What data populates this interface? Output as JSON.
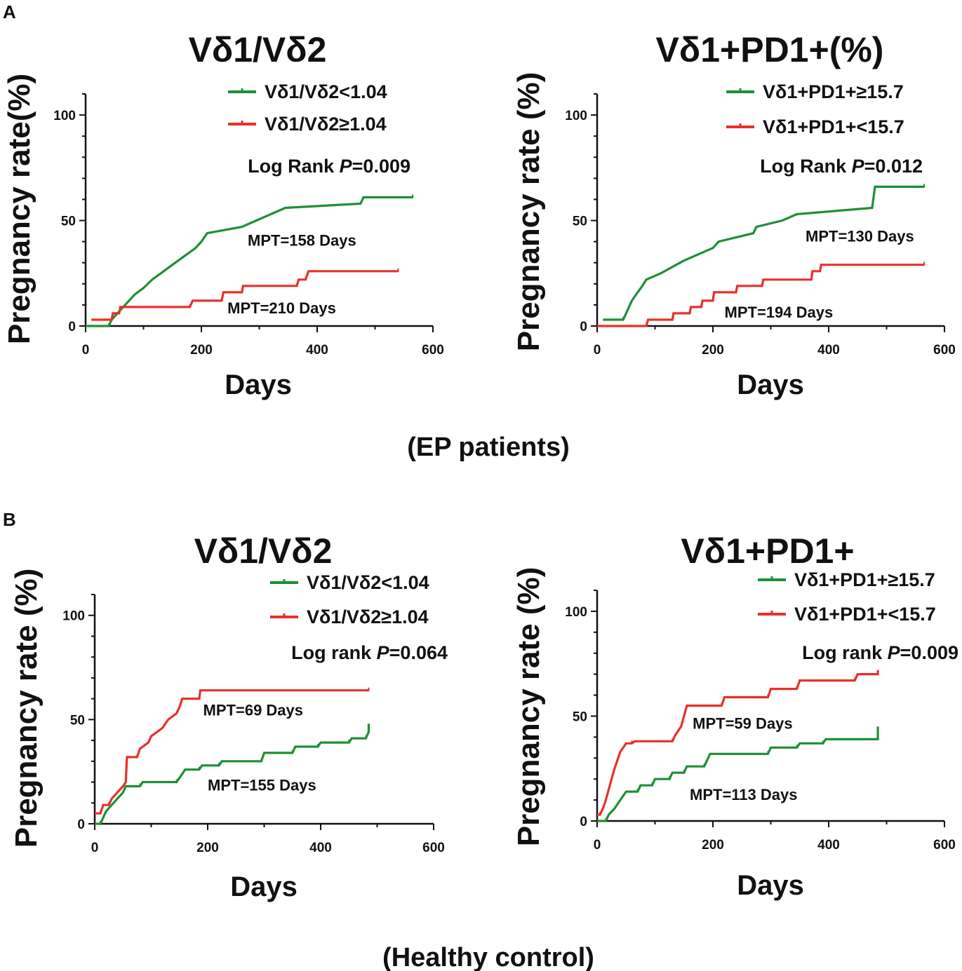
{
  "colors": {
    "series_a": "#1e8f36",
    "series_b": "#e8302a",
    "ink": "#111111"
  },
  "panels": [
    {
      "letter": "A",
      "caption": "(EP patients)"
    },
    {
      "letter": "B",
      "caption": "(Healthy control)"
    }
  ],
  "chart_data": [
    {
      "type": "line",
      "panel": "A",
      "title": "Vδ1/Vδ2",
      "xlabel": "Days",
      "ylabel": "Pregnancy rate(%)",
      "xlim": [
        0,
        600
      ],
      "ylim": [
        0,
        110
      ],
      "xticks": [
        0,
        200,
        400,
        600
      ],
      "yticks": [
        0,
        50,
        100
      ],
      "stat": {
        "prefix": "Log Rank ",
        "p": "P",
        "rest": "=0.009"
      },
      "series": [
        {
          "name": "Vδ1/Vδ2<1.04",
          "color": "#1e8f36",
          "annotation": "MPT=158 Days",
          "annotation_at": [
            280,
            38
          ],
          "points": [
            [
              0,
              0
            ],
            [
              40,
              0
            ],
            [
              45,
              3
            ],
            [
              55,
              6
            ],
            [
              65,
              9
            ],
            [
              75,
              12
            ],
            [
              85,
              15
            ],
            [
              100,
              18
            ],
            [
              115,
              22
            ],
            [
              130,
              25
            ],
            [
              145,
              28
            ],
            [
              160,
              31
            ],
            [
              175,
              34
            ],
            [
              190,
              37
            ],
            [
              200,
              40
            ],
            [
              210,
              44
            ],
            [
              270,
              47
            ],
            [
              295,
              50
            ],
            [
              320,
              53
            ],
            [
              345,
              56
            ],
            [
              475,
              58
            ],
            [
              480,
              61
            ],
            [
              565,
              61
            ]
          ]
        },
        {
          "name": "Vδ1/Vδ2≥1.04",
          "color": "#e8302a",
          "annotation": "MPT=210 Days",
          "annotation_at": [
            245,
            6
          ],
          "points": [
            [
              10,
              3
            ],
            [
              45,
              3
            ],
            [
              47,
              6
            ],
            [
              58,
              6
            ],
            [
              60,
              9
            ],
            [
              180,
              9
            ],
            [
              185,
              12
            ],
            [
              235,
              12
            ],
            [
              238,
              16
            ],
            [
              270,
              16
            ],
            [
              272,
              19
            ],
            [
              365,
              19
            ],
            [
              368,
              22
            ],
            [
              380,
              22
            ],
            [
              385,
              26
            ],
            [
              540,
              26
            ]
          ]
        }
      ]
    },
    {
      "type": "line",
      "panel": "A",
      "title": "Vδ1+PD1+(%)",
      "xlabel": "Days",
      "ylabel": "Pregnancy rate (%)",
      "xlim": [
        0,
        600
      ],
      "ylim": [
        0,
        110
      ],
      "xticks": [
        0,
        200,
        400,
        600
      ],
      "yticks": [
        0,
        50,
        100
      ],
      "stat": {
        "prefix": "Log Rank ",
        "p": "P",
        "rest": "=0.012"
      },
      "series": [
        {
          "name": "Vδ1+PD1+≥15.7",
          "color": "#1e8f36",
          "annotation": "MPT=130 Days",
          "annotation_at": [
            360,
            40
          ],
          "points": [
            [
              10,
              3
            ],
            [
              45,
              3
            ],
            [
              50,
              6
            ],
            [
              55,
              9
            ],
            [
              60,
              12
            ],
            [
              70,
              16
            ],
            [
              78,
              19
            ],
            [
              85,
              22
            ],
            [
              110,
              25
            ],
            [
              130,
              28
            ],
            [
              150,
              31
            ],
            [
              175,
              34
            ],
            [
              200,
              37
            ],
            [
              210,
              40
            ],
            [
              270,
              44
            ],
            [
              275,
              47
            ],
            [
              320,
              50
            ],
            [
              345,
              53
            ],
            [
              475,
              56
            ],
            [
              480,
              66
            ],
            [
              565,
              66
            ]
          ]
        },
        {
          "name": "Vδ1+PD1+<15.7",
          "color": "#e8302a",
          "annotation": "MPT=194 Days",
          "annotation_at": [
            220,
            4
          ],
          "points": [
            [
              0,
              0
            ],
            [
              85,
              0
            ],
            [
              88,
              3
            ],
            [
              130,
              3
            ],
            [
              132,
              6
            ],
            [
              160,
              6
            ],
            [
              162,
              9
            ],
            [
              180,
              9
            ],
            [
              182,
              12
            ],
            [
              200,
              12
            ],
            [
              202,
              16
            ],
            [
              240,
              16
            ],
            [
              242,
              19
            ],
            [
              285,
              19
            ],
            [
              287,
              22
            ],
            [
              370,
              22
            ],
            [
              372,
              26
            ],
            [
              385,
              26
            ],
            [
              387,
              29
            ],
            [
              565,
              29
            ]
          ]
        }
      ]
    },
    {
      "type": "line",
      "panel": "B",
      "title": "Vδ1/Vδ2",
      "xlabel": "Days",
      "ylabel": "Pregnancy rate (%)",
      "xlim": [
        0,
        600
      ],
      "ylim": [
        0,
        110
      ],
      "xticks": [
        0,
        200,
        400,
        600
      ],
      "yticks": [
        0,
        50,
        100
      ],
      "stat": {
        "prefix": "Log rank ",
        "p": "P",
        "rest": "=0.064"
      },
      "series": [
        {
          "name": "Vδ1/Vδ2<1.04",
          "color": "#1e8f36",
          "annotation": "MPT=155 Days",
          "annotation_at": [
            200,
            16
          ],
          "points": [
            [
              0,
              0
            ],
            [
              10,
              0
            ],
            [
              15,
              3
            ],
            [
              20,
              6
            ],
            [
              30,
              9
            ],
            [
              40,
              12
            ],
            [
              50,
              15
            ],
            [
              55,
              18
            ],
            [
              80,
              18
            ],
            [
              85,
              20
            ],
            [
              145,
              20
            ],
            [
              150,
              22
            ],
            [
              155,
              24
            ],
            [
              160,
              26
            ],
            [
              185,
              26
            ],
            [
              190,
              28
            ],
            [
              220,
              28
            ],
            [
              225,
              30
            ],
            [
              295,
              30
            ],
            [
              300,
              34
            ],
            [
              350,
              34
            ],
            [
              355,
              37
            ],
            [
              395,
              37
            ],
            [
              400,
              39
            ],
            [
              450,
              39
            ],
            [
              455,
              41
            ],
            [
              480,
              41
            ],
            [
              485,
              44
            ],
            [
              485,
              48
            ]
          ]
        },
        {
          "name": "Vδ1/Vδ2≥1.04",
          "color": "#e8302a",
          "annotation": "MPT=69 Days",
          "annotation_at": [
            192,
            52
          ],
          "points": [
            [
              0,
              5
            ],
            [
              10,
              5
            ],
            [
              15,
              9
            ],
            [
              25,
              9
            ],
            [
              30,
              12
            ],
            [
              40,
              15
            ],
            [
              50,
              18
            ],
            [
              55,
              20
            ],
            [
              57,
              32
            ],
            [
              75,
              32
            ],
            [
              80,
              36
            ],
            [
              95,
              39
            ],
            [
              100,
              42
            ],
            [
              120,
              46
            ],
            [
              130,
              50
            ],
            [
              145,
              53
            ],
            [
              150,
              56
            ],
            [
              155,
              60
            ],
            [
              185,
              60
            ],
            [
              187,
              64
            ],
            [
              485,
              64
            ]
          ]
        }
      ]
    },
    {
      "type": "line",
      "panel": "B",
      "title": "Vδ1+PD1+",
      "xlabel": "Days",
      "ylabel": "Pregnancy rate (%)",
      "xlim": [
        0,
        600
      ],
      "ylim": [
        0,
        110
      ],
      "xticks": [
        0,
        200,
        400,
        600
      ],
      "yticks": [
        0,
        50,
        100
      ],
      "stat": {
        "prefix": "Log rank ",
        "p": "P",
        "rest": "=0.009"
      },
      "series": [
        {
          "name": "Vδ1+PD1+≥15.7",
          "color": "#1e8f36",
          "annotation": "MPT=113 Days",
          "annotation_at": [
            160,
            10
          ],
          "points": [
            [
              0,
              0
            ],
            [
              15,
              0
            ],
            [
              20,
              3
            ],
            [
              30,
              6
            ],
            [
              40,
              10
            ],
            [
              50,
              14
            ],
            [
              70,
              14
            ],
            [
              75,
              17
            ],
            [
              95,
              17
            ],
            [
              100,
              20
            ],
            [
              125,
              20
            ],
            [
              130,
              23
            ],
            [
              150,
              23
            ],
            [
              155,
              26
            ],
            [
              185,
              26
            ],
            [
              190,
              29
            ],
            [
              195,
              32
            ],
            [
              295,
              32
            ],
            [
              300,
              35
            ],
            [
              345,
              35
            ],
            [
              350,
              37
            ],
            [
              390,
              37
            ],
            [
              395,
              39
            ],
            [
              485,
              39
            ],
            [
              485,
              45
            ]
          ]
        },
        {
          "name": "Vδ1+PD1+<15.7",
          "color": "#e8302a",
          "annotation": "MPT=59 Days",
          "annotation_at": [
            165,
            44
          ],
          "points": [
            [
              0,
              3
            ],
            [
              5,
              3
            ],
            [
              10,
              6
            ],
            [
              15,
              10
            ],
            [
              20,
              15
            ],
            [
              25,
              20
            ],
            [
              30,
              25
            ],
            [
              35,
              29
            ],
            [
              40,
              33
            ],
            [
              50,
              37
            ],
            [
              60,
              37
            ],
            [
              65,
              38
            ],
            [
              130,
              38
            ],
            [
              135,
              41
            ],
            [
              145,
              45
            ],
            [
              150,
              50
            ],
            [
              155,
              55
            ],
            [
              215,
              55
            ],
            [
              220,
              59
            ],
            [
              295,
              59
            ],
            [
              300,
              63
            ],
            [
              345,
              63
            ],
            [
              350,
              67
            ],
            [
              445,
              67
            ],
            [
              450,
              70
            ],
            [
              485,
              70
            ],
            [
              485,
              72
            ]
          ]
        }
      ]
    }
  ]
}
